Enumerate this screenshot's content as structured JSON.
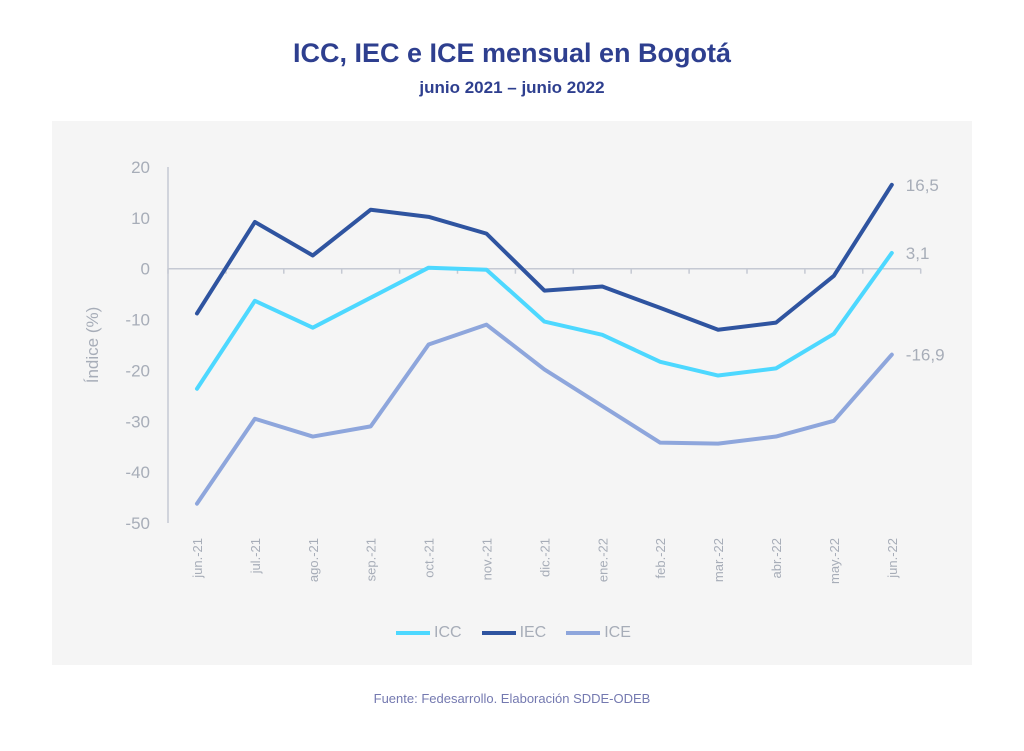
{
  "chart_data": {
    "type": "line",
    "title": "ICC, IEC e ICE mensual en Bogotá",
    "subtitle": "junio 2021 – junio 2022",
    "xlabel": "",
    "ylabel": "Índice (%)",
    "ylim": [
      -50,
      20
    ],
    "yticks": [
      "20",
      "10",
      "0",
      "-10",
      "-20",
      "-30",
      "-40",
      "-50"
    ],
    "ytick_values": [
      20,
      10,
      0,
      -10,
      -20,
      -30,
      -40,
      -50
    ],
    "categories": [
      "jun.-21",
      "jul.-21",
      "ago.-21",
      "sep.-21",
      "oct.-21",
      "nov.-21",
      "dic.-21",
      "ene.-22",
      "feb.-22",
      "mar.-22",
      "abr.-22",
      "may.-22",
      "jun.-22"
    ],
    "series": [
      {
        "name": "ICC",
        "color": "#4dd8ff",
        "values": [
          -23.6,
          -6.3,
          -11.6,
          -5.7,
          0.2,
          -0.2,
          -10.4,
          -13.0,
          -18.3,
          -21.0,
          -19.6,
          -12.8,
          3.1
        ],
        "end_label": "3,1"
      },
      {
        "name": "IEC",
        "color": "#2f54a0",
        "values": [
          -8.8,
          9.2,
          2.6,
          11.6,
          10.2,
          6.9,
          -4.3,
          -3.5,
          -7.7,
          -12.0,
          -10.6,
          -1.4,
          16.5
        ],
        "end_label": "16,5"
      },
      {
        "name": "ICE",
        "color": "#8ea6dc",
        "values": [
          -46.2,
          -29.5,
          -33.0,
          -31.0,
          -14.9,
          -11.0,
          -19.8,
          -27.0,
          -34.2,
          -34.4,
          -33.0,
          -29.9,
          -16.9
        ],
        "end_label": "-16,9"
      }
    ],
    "grid": false,
    "legend_position": "bottom"
  },
  "source": "Fuente: Fedesarrollo. Elaboración SDDE-ODEB"
}
